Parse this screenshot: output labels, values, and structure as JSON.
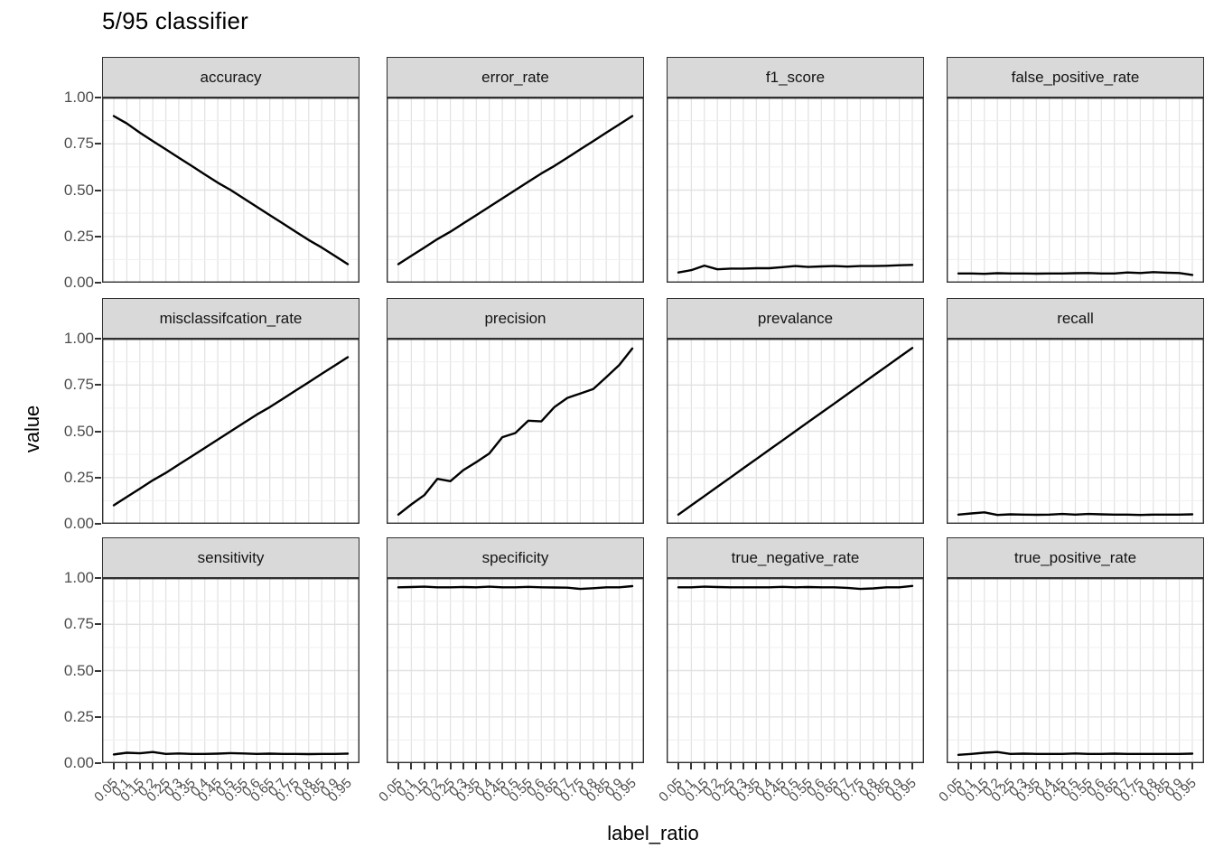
{
  "title": "5/95 classifier",
  "axes": {
    "x_label": "label_ratio",
    "y_label": "value",
    "y_ticks": [
      "1.00",
      "0.75",
      "0.50",
      "0.25",
      "0.00"
    ],
    "x_ticks": [
      "0.05",
      "0.1",
      "0.15",
      "0.2",
      "0.25",
      "0.3",
      "0.35",
      "0.4",
      "0.45",
      "0.5",
      "0.55",
      "0.6",
      "0.65",
      "0.7",
      "0.75",
      "0.8",
      "0.85",
      "0.9",
      "0.95"
    ]
  },
  "colors": {
    "line": "#000000",
    "strip_bg": "#d9d9d9",
    "panel_bg": "#ffffff",
    "panel_border": "#2f2f2f",
    "grid_major": "#e2e2e2",
    "grid_minor": "#efefef",
    "tick_text": "#4d4d4d",
    "tick_mark": "#333333"
  },
  "chart_data": {
    "type": "line",
    "layout": "facet_wrap 4 cols x 3 rows",
    "title": "5/95 classifier",
    "xlabel": "label_ratio",
    "ylabel": "value",
    "xlim": [
      0.05,
      0.95
    ],
    "ylim": [
      0,
      1
    ],
    "grid": true,
    "legend": "none",
    "x": [
      0.05,
      0.1,
      0.15,
      0.2,
      0.25,
      0.3,
      0.35,
      0.4,
      0.45,
      0.5,
      0.55,
      0.6,
      0.65,
      0.7,
      0.75,
      0.8,
      0.85,
      0.9,
      0.95
    ],
    "facets": [
      {
        "name": "accuracy",
        "values": [
          0.9,
          0.86,
          0.81,
          0.765,
          0.72,
          0.675,
          0.63,
          0.585,
          0.54,
          0.5,
          0.455,
          0.41,
          0.365,
          0.32,
          0.275,
          0.23,
          0.19,
          0.145,
          0.1
        ]
      },
      {
        "name": "error_rate",
        "values": [
          0.1,
          0.145,
          0.19,
          0.235,
          0.275,
          0.32,
          0.365,
          0.41,
          0.455,
          0.5,
          0.545,
          0.59,
          0.63,
          0.675,
          0.72,
          0.765,
          0.81,
          0.855,
          0.9
        ]
      },
      {
        "name": "f1_score",
        "values": [
          0.055,
          0.068,
          0.092,
          0.072,
          0.076,
          0.076,
          0.078,
          0.078,
          0.084,
          0.09,
          0.085,
          0.088,
          0.09,
          0.087,
          0.09,
          0.09,
          0.091,
          0.094,
          0.096
        ]
      },
      {
        "name": "false_positive_rate",
        "values": [
          0.05,
          0.05,
          0.048,
          0.051,
          0.05,
          0.05,
          0.049,
          0.05,
          0.05,
          0.051,
          0.052,
          0.05,
          0.05,
          0.055,
          0.052,
          0.057,
          0.054,
          0.052,
          0.042
        ]
      },
      {
        "name": "misclassifcation_rate",
        "values": [
          0.1,
          0.145,
          0.19,
          0.235,
          0.275,
          0.32,
          0.365,
          0.41,
          0.455,
          0.5,
          0.545,
          0.59,
          0.63,
          0.675,
          0.72,
          0.765,
          0.81,
          0.855,
          0.9
        ]
      },
      {
        "name": "precision",
        "values": [
          0.05,
          0.105,
          0.155,
          0.243,
          0.23,
          0.29,
          0.333,
          0.38,
          0.468,
          0.49,
          0.557,
          0.553,
          0.63,
          0.68,
          0.704,
          0.728,
          0.792,
          0.858,
          0.947
        ]
      },
      {
        "name": "prevalance",
        "values": [
          0.05,
          0.1,
          0.15,
          0.2,
          0.25,
          0.3,
          0.35,
          0.4,
          0.45,
          0.5,
          0.55,
          0.6,
          0.65,
          0.7,
          0.75,
          0.8,
          0.85,
          0.9,
          0.95
        ]
      },
      {
        "name": "recall",
        "values": [
          0.05,
          0.056,
          0.062,
          0.048,
          0.051,
          0.05,
          0.049,
          0.05,
          0.053,
          0.05,
          0.053,
          0.051,
          0.05,
          0.05,
          0.048,
          0.05,
          0.05,
          0.05,
          0.051
        ]
      },
      {
        "name": "sensitivity",
        "values": [
          0.047,
          0.056,
          0.053,
          0.06,
          0.05,
          0.052,
          0.05,
          0.05,
          0.051,
          0.054,
          0.052,
          0.05,
          0.051,
          0.05,
          0.05,
          0.049,
          0.05,
          0.05,
          0.051
        ]
      },
      {
        "name": "specificity",
        "values": [
          0.95,
          0.951,
          0.953,
          0.95,
          0.95,
          0.951,
          0.95,
          0.953,
          0.95,
          0.95,
          0.952,
          0.95,
          0.949,
          0.948,
          0.941,
          0.945,
          0.95,
          0.95,
          0.956
        ]
      },
      {
        "name": "true_negative_rate",
        "values": [
          0.95,
          0.95,
          0.953,
          0.951,
          0.95,
          0.95,
          0.95,
          0.95,
          0.952,
          0.95,
          0.951,
          0.95,
          0.95,
          0.947,
          0.941,
          0.944,
          0.95,
          0.95,
          0.957
        ]
      },
      {
        "name": "true_positive_rate",
        "values": [
          0.045,
          0.05,
          0.056,
          0.06,
          0.05,
          0.051,
          0.05,
          0.05,
          0.05,
          0.052,
          0.05,
          0.05,
          0.051,
          0.05,
          0.05,
          0.05,
          0.05,
          0.05,
          0.051
        ]
      }
    ]
  }
}
